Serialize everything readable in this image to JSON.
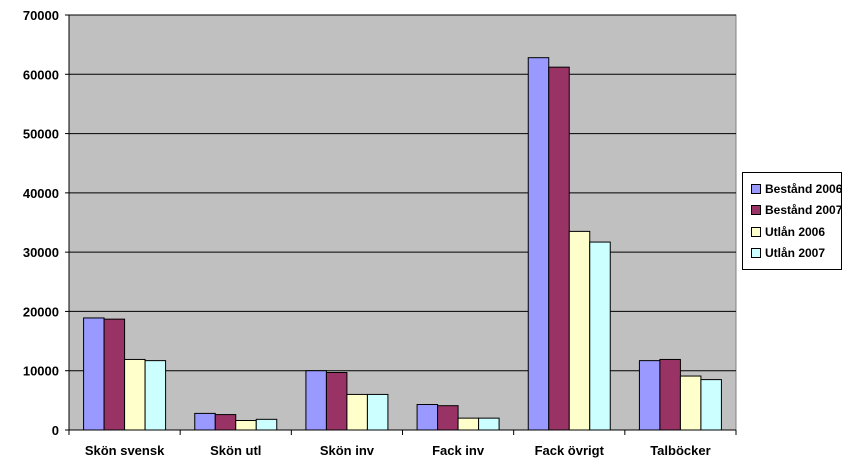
{
  "chart_data": {
    "type": "bar",
    "categories": [
      "Skön svensk",
      "Skön utl",
      "Skön inv",
      "Fack inv",
      "Fack övrigt",
      "Talböcker"
    ],
    "series": [
      {
        "name": "Bestånd 2006",
        "color": "#9999ff",
        "values": [
          18900,
          2800,
          10000,
          4300,
          62800,
          11700
        ]
      },
      {
        "name": "Bestånd 2007",
        "color": "#993366",
        "values": [
          18700,
          2600,
          9700,
          4100,
          61200,
          11900
        ]
      },
      {
        "name": "Utlån 2006",
        "color": "#ffffcc",
        "values": [
          11900,
          1600,
          6000,
          2000,
          33500,
          9100
        ]
      },
      {
        "name": "Utlån 2007",
        "color": "#ccffff",
        "values": [
          11700,
          1800,
          6000,
          2000,
          31700,
          8500
        ]
      }
    ],
    "y_ticks": [
      "0",
      "10000",
      "20000",
      "30000",
      "40000",
      "50000",
      "60000",
      "70000"
    ],
    "ylim": [
      0,
      70000
    ],
    "title": "",
    "xlabel": "",
    "ylabel": "",
    "grid": true,
    "plot_background": "#c0c0c0",
    "legend_position": "right"
  }
}
